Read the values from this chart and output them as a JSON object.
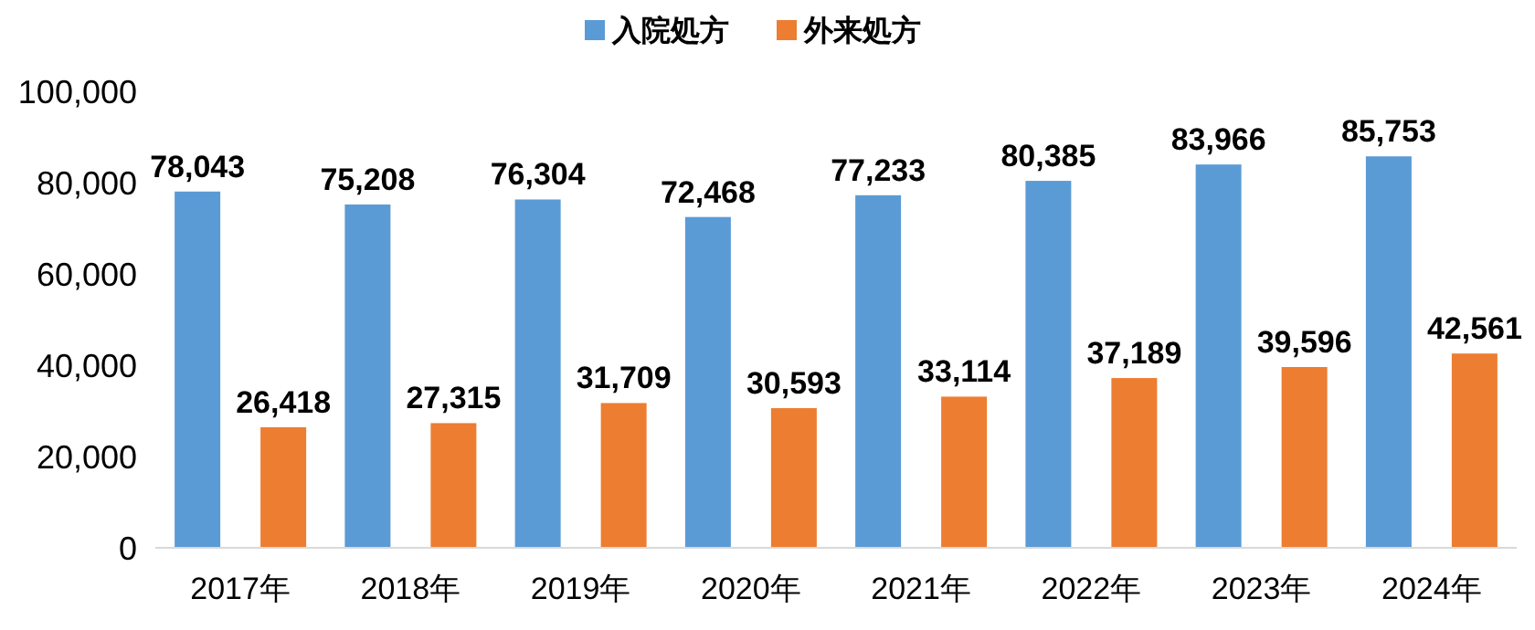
{
  "chart_data": {
    "type": "bar",
    "categories": [
      "2017年",
      "2018年",
      "2019年",
      "2020年",
      "2021年",
      "2022年",
      "2023年",
      "2024年"
    ],
    "series": [
      {
        "name": "入院処方",
        "color": "#5b9bd5",
        "values": [
          78043,
          75208,
          76304,
          72468,
          77233,
          80385,
          83966,
          85753
        ],
        "value_labels": [
          "78,043",
          "75,208",
          "76,304",
          "72,468",
          "77,233",
          "80,385",
          "83,966",
          "85,753"
        ]
      },
      {
        "name": "外来処方",
        "color": "#ed7d31",
        "values": [
          26418,
          27315,
          31709,
          30593,
          33114,
          37189,
          39596,
          42561
        ],
        "value_labels": [
          "26,418",
          "27,315",
          "31,709",
          "30,593",
          "33,114",
          "37,189",
          "39,596",
          "42,561"
        ]
      }
    ],
    "ylim": [
      0,
      100000
    ],
    "yticks": [
      {
        "value": 0,
        "label": "0"
      },
      {
        "value": 20000,
        "label": "20,000"
      },
      {
        "value": 40000,
        "label": "40,000"
      },
      {
        "value": 60000,
        "label": "60,000"
      },
      {
        "value": 80000,
        "label": "80,000"
      },
      {
        "value": 100000,
        "label": "100,000"
      }
    ],
    "legend": "top",
    "grid": false
  }
}
